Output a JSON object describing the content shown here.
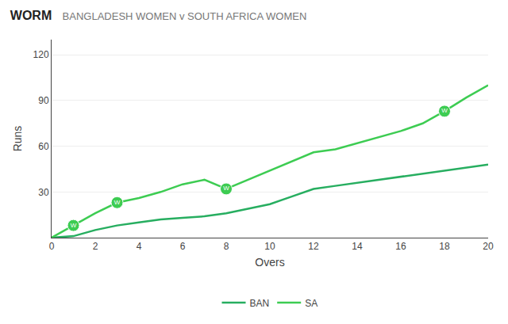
{
  "chart_data": {
    "type": "line",
    "title": "WORM",
    "subtitle": "BANGLADESH WOMEN v SOUTH AFRICA WOMEN",
    "x_label": "Overs",
    "y_label": "Runs",
    "x": [
      0,
      1,
      2,
      3,
      4,
      5,
      6,
      7,
      8,
      9,
      10,
      11,
      12,
      13,
      14,
      15,
      16,
      17,
      18,
      19,
      20
    ],
    "series": [
      {
        "name": "BAN",
        "color": "#27ae60",
        "values": [
          0,
          1,
          5,
          8,
          10,
          12,
          13,
          14,
          16,
          19,
          22,
          27,
          32,
          34,
          36,
          38,
          40,
          42,
          44,
          46,
          48
        ]
      },
      {
        "name": "SA",
        "color": "#3dcc52",
        "values": [
          0,
          8,
          16,
          23,
          26,
          30,
          35,
          38,
          32,
          38,
          44,
          50,
          56,
          58,
          62,
          66,
          70,
          75,
          83,
          92,
          100
        ],
        "wickets": {
          "x": [
            1,
            3,
            8,
            18
          ],
          "values": [
            8,
            23,
            32,
            83
          ],
          "label": "W",
          "color": "#ffffff"
        }
      }
    ],
    "xlim": [
      0,
      20
    ],
    "xticks": [
      0,
      2,
      4,
      6,
      8,
      10,
      12,
      14,
      16,
      18,
      20
    ],
    "ylim": [
      0,
      130
    ],
    "yticks": [
      30,
      60,
      90,
      120
    ],
    "grid": true,
    "legend": "bottom"
  }
}
